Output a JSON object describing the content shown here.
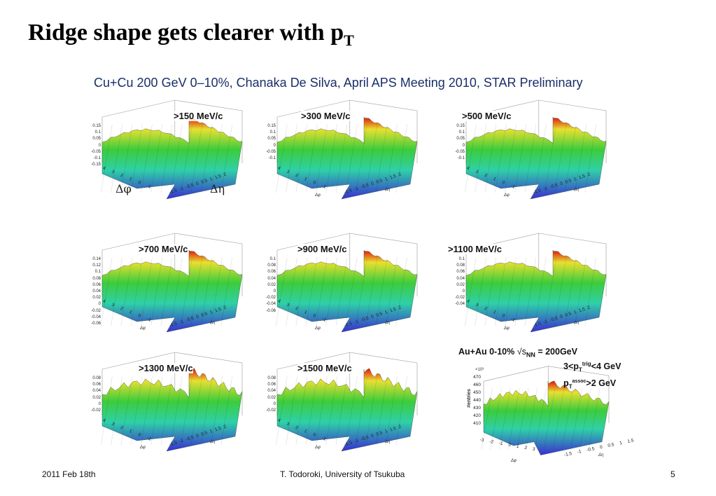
{
  "slide": {
    "title": "Ridge shape gets clearer with p",
    "title_sub": "T",
    "caption": "Cu+Cu 200 GeV 0–10%, Chanaka De Silva, April APS Meeting 2010, STAR Preliminary"
  },
  "panels": [
    {
      "label": ">150 MeV/c",
      "zticks": [
        "0.15",
        "0.1",
        "0.05",
        "0",
        "-0.05",
        "-0.1",
        "-0.15"
      ]
    },
    {
      "label": ">300 MeV/c",
      "zticks": [
        "0.15",
        "0.1",
        "0.05",
        "0",
        "-0.05",
        "-0.1"
      ]
    },
    {
      "label": ">500 MeV/c",
      "zticks": [
        "0.15",
        "0.1",
        "0.05",
        "0",
        "-0.05",
        "-0.1"
      ]
    },
    {
      "label": ">700 MeV/c",
      "zticks": [
        "0.14",
        "0.12",
        "0.1",
        "0.08",
        "0.06",
        "0.04",
        "0.02",
        "0",
        "-0.02",
        "-0.04",
        "-0.06"
      ]
    },
    {
      "label": ">900 MeV/c",
      "zticks": [
        "0.1",
        "0.08",
        "0.06",
        "0.04",
        "0.02",
        "0",
        "-0.02",
        "-0.04",
        "-0.06"
      ]
    },
    {
      "label": ">1100 MeV/c",
      "zticks": [
        "0.1",
        "0.08",
        "0.06",
        "0.04",
        "0.02",
        "0",
        "-0.02",
        "-0.04"
      ]
    },
    {
      "label": ">1300 MeV/c",
      "zticks": [
        "0.08",
        "0.06",
        "0.04",
        "0.02",
        "0",
        "-0.02"
      ]
    },
    {
      "label": ">1500 MeV/c",
      "zticks": [
        "0.08",
        "0.06",
        "0.04",
        "0.02",
        "0",
        "-0.02"
      ]
    }
  ],
  "axes": {
    "phi_ticks": [
      "4",
      "3",
      "2",
      "1",
      "0",
      "-1"
    ],
    "eta_ticks": [
      "-1.5",
      "-1",
      "-0.5",
      "0",
      "0.5",
      "1",
      "1.5",
      "2"
    ],
    "phi_label": "Δφ",
    "eta_label": "Δη",
    "big_phi_label": "Δφ",
    "big_eta_label": "Δη"
  },
  "auau_panel": {
    "title_prefix": "Au+Au 0-10%",
    "sqrt": "√s",
    "nn": "NN",
    "energy": "= 200GeV",
    "trig_prefix": "3<p",
    "trig_sub": "T",
    "trig_sup": "trig",
    "trig_suffix": "<4 GeV",
    "assoc_prefix": "p",
    "assoc_sub": "T",
    "assoc_sup": "assoc",
    "assoc_suffix": ">2 GeV",
    "scale_label": "×10³",
    "z_title": "#entries",
    "zticks": [
      "470",
      "460",
      "450",
      "440",
      "430",
      "420",
      "410"
    ],
    "phi_ticks": [
      "-3",
      "-2",
      "-1",
      "0",
      "1",
      "2",
      "3"
    ],
    "eta_ticks": [
      "-1.5",
      "-1",
      "-0.5",
      "0",
      "0.5",
      "1",
      "1.5"
    ],
    "phi_label": "Δφ",
    "eta_label": "Δη"
  },
  "footer": {
    "date": "2011 Feb 18th",
    "author": "T. Todoroki, University of Tsukuba",
    "page": "5"
  },
  "colors": {
    "surface_low": "#3a2fd0",
    "surface_mid": "#2fd0a8",
    "surface_plateau": "#3ccc3c",
    "surface_peak": "#e01010",
    "caption": "#1a2f6a"
  }
}
